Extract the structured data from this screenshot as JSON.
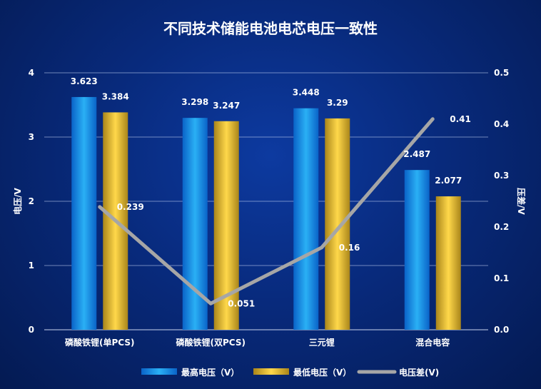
{
  "chart_data": {
    "type": "bar",
    "title": "不同技术储能电池电芯电压一致性",
    "categories": [
      "磷酸铁锂(单PCS)",
      "磷酸铁锂(双PCS)",
      "三元锂",
      "混合电容"
    ],
    "series": [
      {
        "name": "最高电压（V）",
        "type": "bar",
        "axis": "left",
        "color": "#1e90e6",
        "values": [
          3.623,
          3.298,
          3.448,
          2.487
        ]
      },
      {
        "name": "最低电压（V）",
        "type": "bar",
        "axis": "left",
        "color": "#d8b032",
        "values": [
          3.384,
          3.247,
          3.29,
          2.077
        ]
      },
      {
        "name": "电压差(V)",
        "type": "line",
        "axis": "right",
        "color": "#a6a6a6",
        "values": [
          0.239,
          0.051,
          0.16,
          0.41
        ]
      }
    ],
    "ylabel": "电压/V",
    "y2label": "压差/V",
    "ylim": [
      0,
      4
    ],
    "y2lim": [
      0,
      0.5
    ],
    "yticks": [
      "0",
      "1",
      "2",
      "3",
      "4"
    ],
    "y2ticks": [
      "0.0",
      "0.1",
      "0.2",
      "0.3",
      "0.4",
      "0.5"
    ],
    "data_labels": {
      "high": [
        "3.623",
        "3.298",
        "3.448",
        "2.487"
      ],
      "low": [
        "3.384",
        "3.247",
        "3.29",
        "2.077"
      ],
      "diff": [
        "0.239",
        "0.051",
        "0.16",
        "0.41"
      ]
    },
    "grid": true,
    "legend_position": "bottom"
  }
}
